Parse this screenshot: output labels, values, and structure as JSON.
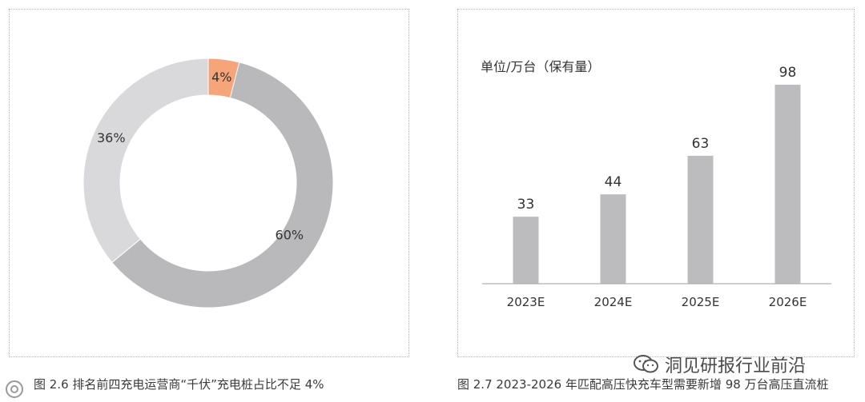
{
  "chart_data": [
    {
      "type": "pie",
      "variant": "donut",
      "slices": [
        {
          "label": "4%",
          "value": 4,
          "color": "#f6a47a"
        },
        {
          "label": "60%",
          "value": 60,
          "color": "#b9b9bc"
        },
        {
          "label": "36%",
          "value": 36,
          "color": "#d9d9db"
        }
      ],
      "caption": "图 2.6 排名前四充电运营商“千伏”充电桩占比不足 4%"
    },
    {
      "type": "bar",
      "unit_label": "单位/万台（保有量）",
      "categories": [
        "2023E",
        "2024E",
        "2025E",
        "2026E"
      ],
      "values": [
        33,
        44,
        63,
        98
      ],
      "value_labels": [
        "33",
        "44",
        "63",
        "98"
      ],
      "ylim": [
        0,
        98
      ],
      "bar_color": "#bcbcbf",
      "caption": "图 2.7 2023-2026 年匹配高压快充车型需要新增 98 万台高压直流桩"
    }
  ],
  "watermark": {
    "text": "洞见研报行业前沿",
    "icon": "wechat-icon"
  }
}
